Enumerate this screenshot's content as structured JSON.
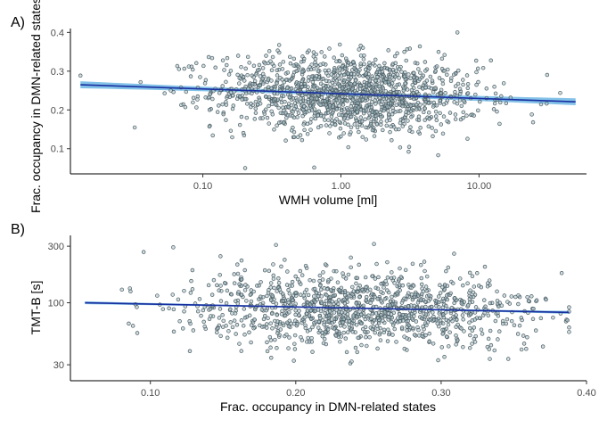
{
  "chart_data": [
    {
      "panel_tag": "A)",
      "type": "scatter",
      "xlabel": "WMH volume [ml]",
      "ylabel": "Frac. occupancy in DMN-related states",
      "x_scale": "log10",
      "y_scale": "linear",
      "xlim": [
        0.011,
        60
      ],
      "ylim": [
        0.035,
        0.41
      ],
      "x_ticks": [
        0.1,
        1.0,
        10.0
      ],
      "x_tick_labels": [
        "0.10",
        "1.00",
        "10.00"
      ],
      "y_ticks": [
        0.1,
        0.2,
        0.3,
        0.4
      ],
      "y_tick_labels": [
        "0.1",
        "0.2",
        "0.3",
        "0.4"
      ],
      "n_points": 1400,
      "x_log10_mean": 0.05,
      "x_log10_sd": 0.48,
      "x_range": [
        0.013,
        50
      ],
      "y_scatter_sd": 0.05,
      "fit_line": {
        "x": [
          0.013,
          50
        ],
        "y": [
          0.265,
          0.221
        ],
        "ci_halfwidth": 0.009
      },
      "point_color": "#a9c3cb",
      "line_color": "#1a2fa0",
      "ci_color": "#5aaee0",
      "grid": false
    },
    {
      "panel_tag": "B)",
      "type": "scatter",
      "xlabel": "Frac. occupancy in DMN-related states",
      "ylabel": "TMT-B [s]",
      "x_scale": "linear",
      "y_scale": "log10",
      "xlim": [
        0.045,
        0.4
      ],
      "ylim": [
        22,
        370
      ],
      "x_ticks": [
        0.1,
        0.2,
        0.3,
        0.4
      ],
      "x_tick_labels": [
        "0.10",
        "0.20",
        "0.30",
        "0.40"
      ],
      "y_ticks": [
        30,
        100,
        300
      ],
      "y_tick_labels": [
        "30",
        "100",
        "300"
      ],
      "n_points": 1200,
      "x_mean": 0.245,
      "x_sd": 0.06,
      "x_range": [
        0.055,
        0.388
      ],
      "y_log10_mean": 1.93,
      "y_log10_sd": 0.16,
      "fit_line": {
        "x": [
          0.055,
          0.388
        ],
        "y": [
          100,
          83
        ],
        "ci_halfwidth_log10": 0.012
      },
      "point_color": "#a9c3cb",
      "line_color": "#1a2fa0",
      "ci_color": "#5aaee0",
      "grid": false
    }
  ]
}
